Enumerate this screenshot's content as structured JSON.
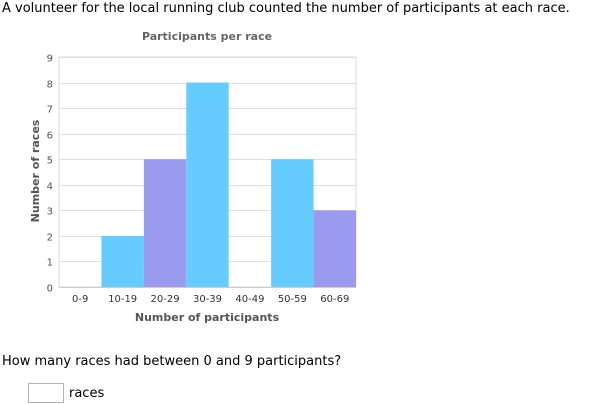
{
  "prompt": "A volunteer for the local running club counted the number of participants at each race.",
  "question": "How many races had between 0 and 9 participants?",
  "answer": {
    "value": "",
    "unit": "races"
  },
  "colors": {
    "bar_primary": "#66ccff",
    "bar_secondary": "#9a9aee",
    "grid": "#dddddd",
    "axis_text": "#555555"
  },
  "chart_data": {
    "type": "bar",
    "title": "Participants per race",
    "xlabel": "Number of participants",
    "ylabel": "Number of races",
    "categories": [
      "0-9",
      "10-19",
      "20-29",
      "30-39",
      "40-49",
      "50-59",
      "60-69"
    ],
    "values": [
      0,
      2,
      5,
      8,
      0,
      5,
      3
    ],
    "ylim": [
      0,
      9
    ],
    "yticks": [
      0,
      1,
      2,
      3,
      4,
      5,
      6,
      7,
      8,
      9
    ],
    "grid": true
  }
}
